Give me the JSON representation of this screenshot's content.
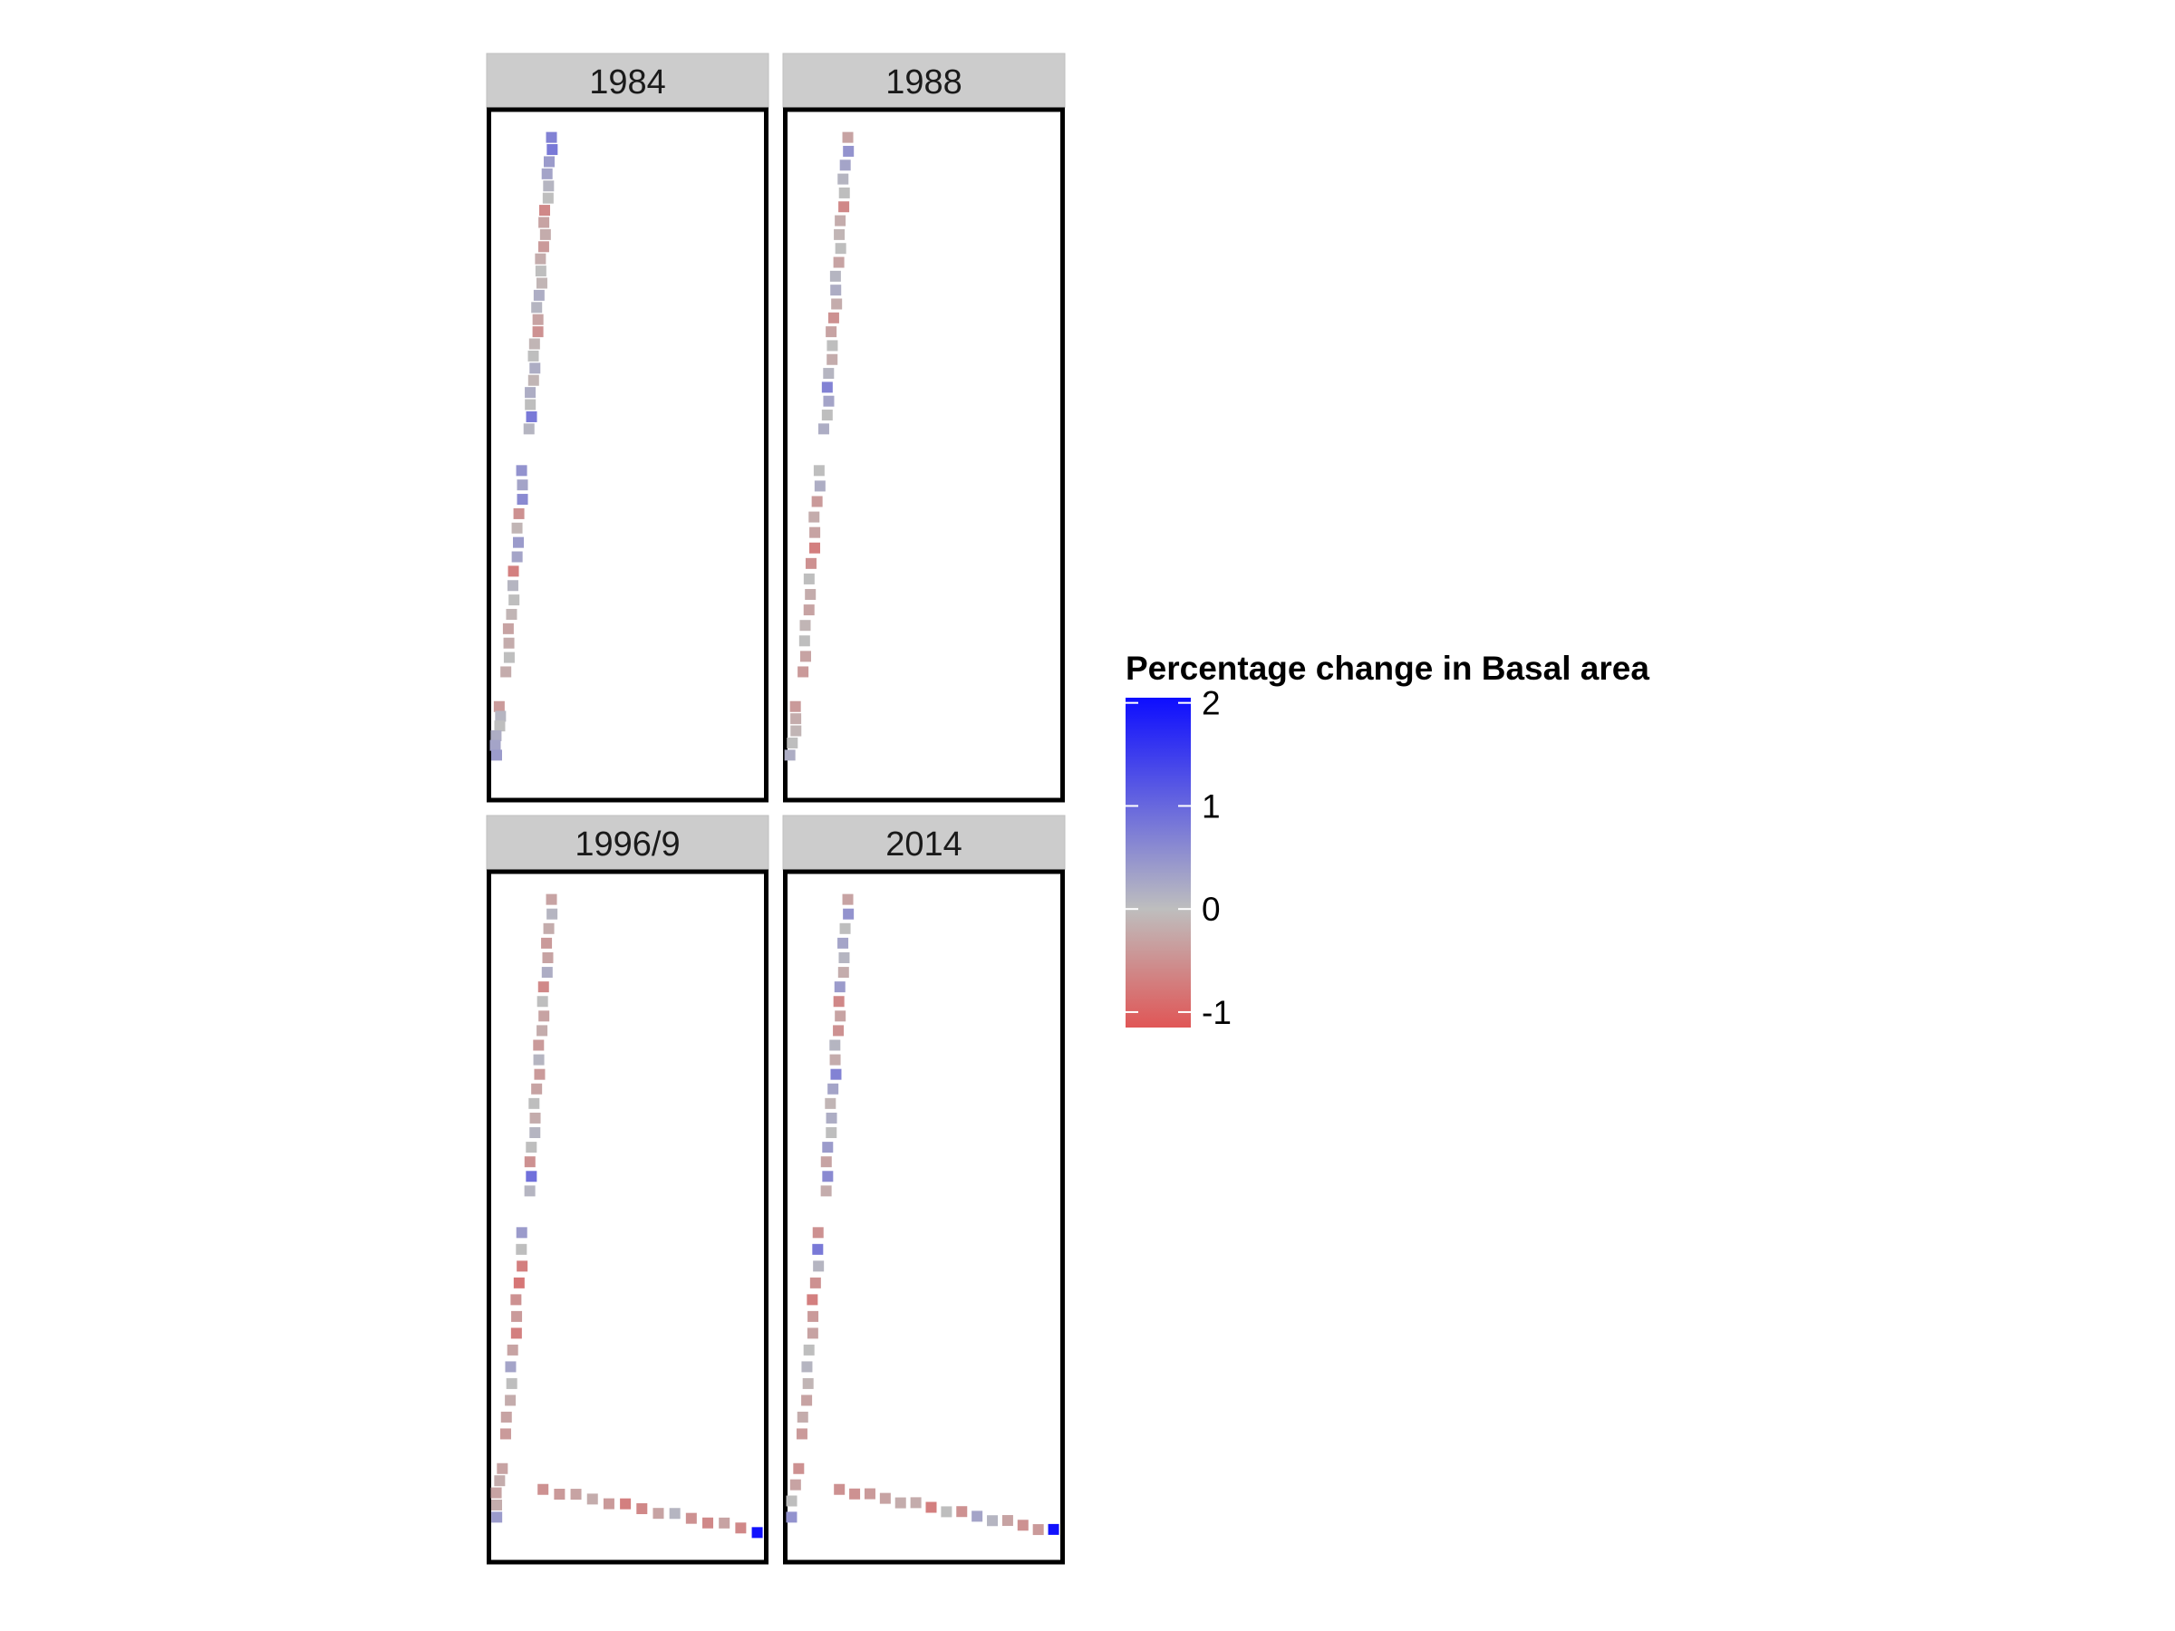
{
  "chart_data": {
    "type": "heatmap",
    "facets": [
      "1984",
      "1988",
      "1996/9",
      "2014"
    ],
    "legend": {
      "title": "Percentage change in Basal area",
      "ticks": [
        2,
        1,
        0,
        -1
      ],
      "range": [
        -1.15,
        2.05
      ],
      "placement": "right",
      "colors": {
        "low": "#e05656",
        "mid": "#bebebe",
        "high": "#0d0dff"
      }
    },
    "grid": false,
    "panels": [
      {
        "facet": "1984",
        "values": [
          0.7,
          0.8,
          0.4,
          0.3,
          0.1,
          0.0,
          -0.6,
          -0.3,
          -0.2,
          -0.4,
          -0.2,
          0.0,
          -0.1,
          0.2,
          0.1,
          -0.3,
          -0.5,
          -0.1,
          0.0,
          0.2,
          -0.1,
          0.2,
          0.0,
          0.8,
          0.1,
          0.5,
          0.3,
          0.6,
          -0.5,
          -0.1,
          0.4,
          0.3,
          -0.7,
          0.1,
          0.0,
          -0.1,
          -0.3,
          -0.2,
          0.0,
          -0.2,
          -0.4,
          0.1,
          0.0,
          0.2,
          0.3,
          0.4
        ],
        "tail": []
      },
      {
        "facet": "1988",
        "values": [
          -0.3,
          0.5,
          0.3,
          0.1,
          0.0,
          -0.6,
          -0.2,
          -0.1,
          0.0,
          -0.3,
          0.1,
          0.2,
          -0.2,
          -0.5,
          -0.3,
          0.0,
          -0.2,
          0.1,
          0.7,
          0.3,
          0.0,
          0.2,
          0.0,
          0.2,
          -0.4,
          -0.2,
          -0.3,
          -0.7,
          -0.5,
          0.0,
          -0.2,
          -0.3,
          -0.1,
          0.0,
          -0.3,
          -0.4,
          -0.4,
          -0.2,
          -0.1,
          0.0,
          0.2
        ],
        "tail": []
      },
      {
        "facet": "1996/9",
        "values": [
          -0.3,
          0.1,
          -0.2,
          -0.4,
          -0.3,
          0.2,
          -0.6,
          0.0,
          -0.3,
          -0.2,
          -0.4,
          0.1,
          -0.4,
          -0.3,
          0.0,
          -0.2,
          0.1,
          0.0,
          -0.5,
          0.9,
          0.1,
          0.4,
          0.0,
          -0.7,
          -0.8,
          -0.5,
          -0.4,
          -0.7,
          -0.3,
          0.3,
          0.0,
          -0.2,
          -0.3,
          -0.4,
          -0.3,
          -0.2,
          -0.3,
          -0.2,
          0.4
        ],
        "tail": [
          -0.5,
          -0.4,
          -0.3,
          -0.2,
          -0.4,
          -0.7,
          -0.6,
          -0.3,
          0.1,
          -0.5,
          -0.6,
          -0.3,
          -0.6,
          2.0
        ]
      },
      {
        "facet": "2014",
        "values": [
          -0.3,
          0.5,
          0.0,
          0.3,
          0.1,
          -0.2,
          0.4,
          -0.6,
          -0.3,
          -0.5,
          0.1,
          -0.2,
          0.7,
          0.3,
          -0.1,
          0.2,
          0.0,
          0.4,
          -0.3,
          0.6,
          -0.2,
          -0.5,
          0.8,
          0.1,
          -0.5,
          -0.7,
          -0.4,
          -0.3,
          0.0,
          0.1,
          -0.1,
          -0.3,
          -0.2,
          -0.4,
          -0.5,
          -0.3,
          0.0,
          0.5
        ],
        "tail": [
          -0.5,
          -0.5,
          -0.4,
          -0.3,
          -0.2,
          -0.2,
          -0.7,
          0.0,
          -0.5,
          0.3,
          0.1,
          -0.3,
          -0.5,
          -0.4,
          2.0
        ]
      }
    ]
  }
}
